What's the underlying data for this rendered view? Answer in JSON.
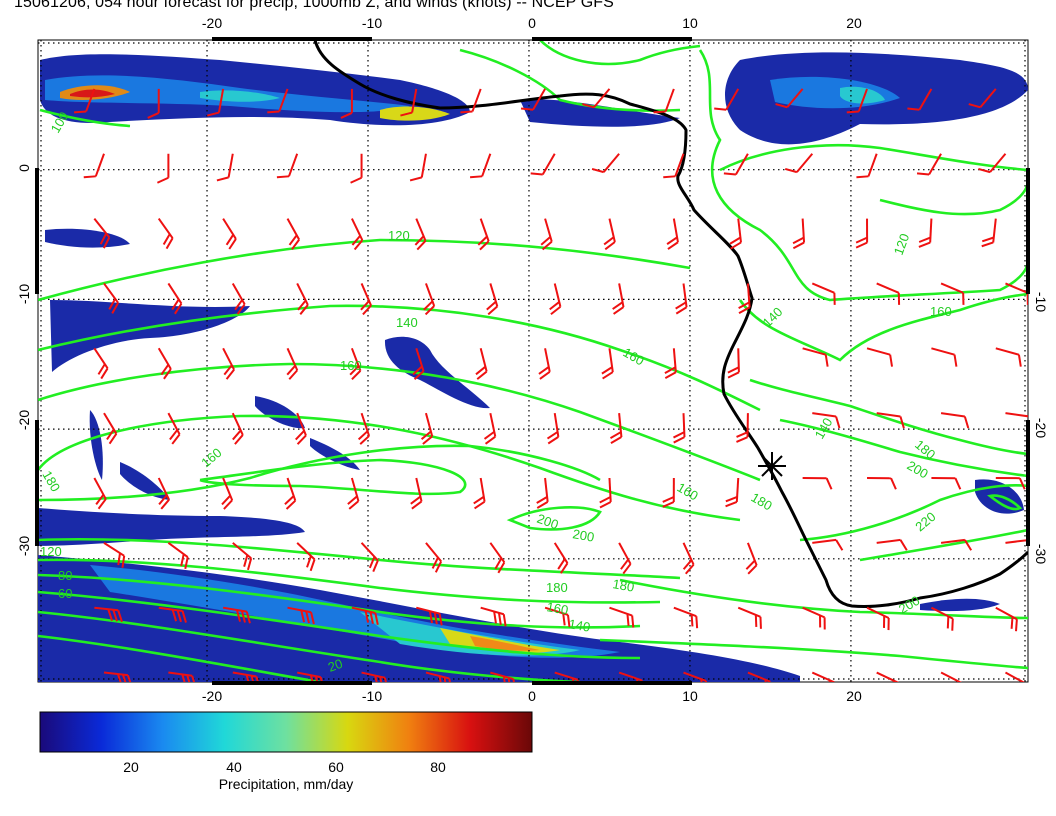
{
  "title": "15061206, 054 hour forecast for precip, 1000mb Z, and winds (knots) -- NCEP GFS",
  "map": {
    "lon_ticks_top": [
      "-20",
      "-10",
      "0",
      "10",
      "20"
    ],
    "lon_ticks_bottom": [
      "-20",
      "-10",
      "0",
      "10",
      "20"
    ],
    "lat_ticks_left": [
      "0",
      "-10",
      "-20",
      "-30"
    ],
    "lat_ticks_right": [
      "-10",
      "-20",
      "-30"
    ],
    "lon_range": [
      -30.5,
      31
    ],
    "lat_range": [
      -39.5,
      10
    ],
    "contour_labels": [
      "100",
      "120",
      "140",
      "160",
      "160",
      "180",
      "160",
      "200",
      "140",
      "120",
      "160",
      "180",
      "200",
      "140",
      "180",
      "160",
      "180",
      "200",
      "220",
      "200",
      "180",
      "160",
      "140",
      "120",
      "80",
      "60",
      "20"
    ],
    "station_marker": "star-marker",
    "colors": {
      "contour": "#22ee22",
      "wind_barb": "#ee1111",
      "coastline": "#000000"
    }
  },
  "colorbar": {
    "ticks": [
      "20",
      "40",
      "60",
      "80"
    ],
    "label": "Precipitation, mm/day",
    "range": [
      0,
      98
    ],
    "colors": [
      "#1a0a7a",
      "#0a2ad8",
      "#1a8af0",
      "#20d8d8",
      "#6ee0a0",
      "#d8d810",
      "#f08010",
      "#d81010",
      "#6a0808"
    ]
  },
  "chart_data": {
    "type": "map",
    "title": "15061206, 054 hour forecast for precip, 1000mb Z, and winds (knots) -- NCEP GFS",
    "contour_variable": "1000mb Z",
    "contour_levels": [
      20,
      60,
      80,
      100,
      120,
      140,
      160,
      180,
      200,
      220
    ],
    "colorbar": {
      "label": "Precipitation, mm/day",
      "ticks": [
        20,
        40,
        60,
        80
      ]
    },
    "xlim": [
      -30.5,
      31
    ],
    "ylim": [
      -39.5,
      10
    ]
  }
}
